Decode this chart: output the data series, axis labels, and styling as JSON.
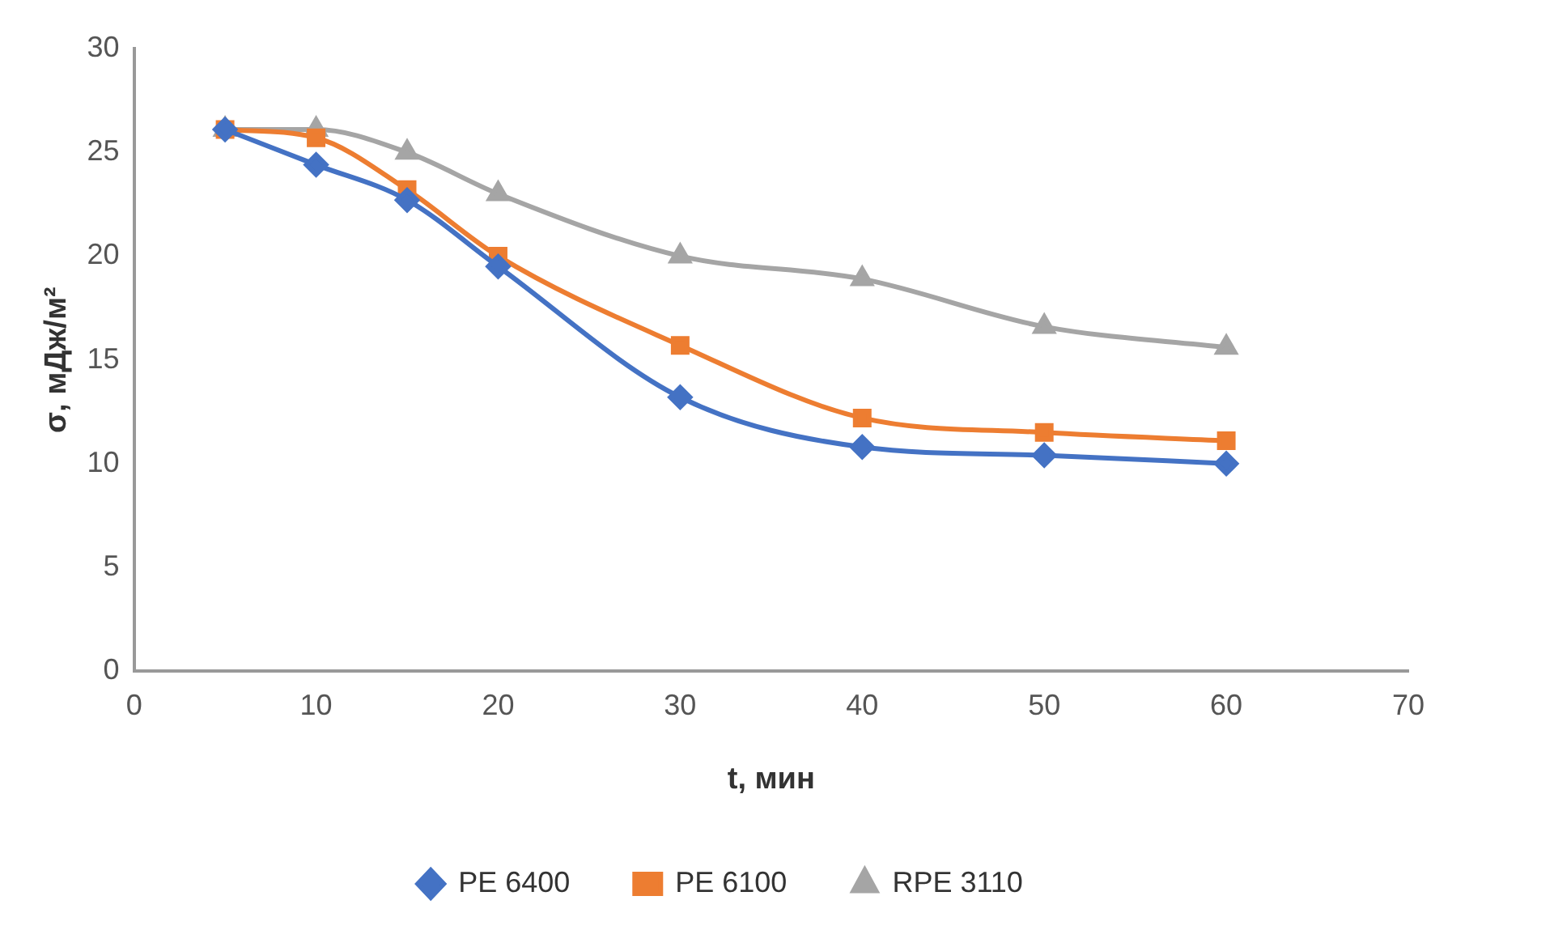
{
  "chart_data": {
    "type": "line",
    "xlabel": "t, мин",
    "ylabel": "σ, мДж/м²",
    "xlim": [
      0,
      70
    ],
    "xticks": [
      0,
      10,
      20,
      30,
      40,
      50,
      60,
      70
    ],
    "ylim": [
      0,
      30
    ],
    "yticks": [
      0,
      5,
      10,
      15,
      20,
      25,
      30
    ],
    "grid": false,
    "legend": "bottom",
    "line_style": "solid",
    "x": [
      5,
      10,
      15,
      20,
      30,
      40,
      50,
      60
    ],
    "series": [
      {
        "name": "PE 6400",
        "color": "#4472c4",
        "marker": "diamond",
        "values": [
          26.1,
          24.4,
          22.7,
          19.5,
          13.2,
          10.8,
          10.4,
          10.0
        ]
      },
      {
        "name": "PE 6100",
        "color": "#ed7d31",
        "marker": "square",
        "values": [
          26.1,
          25.7,
          23.2,
          20.0,
          15.7,
          12.2,
          11.5,
          11.1
        ]
      },
      {
        "name": "RPE 3110",
        "color": "#a5a5a5",
        "marker": "triangle",
        "values": [
          26.1,
          26.1,
          25.0,
          23.0,
          20.0,
          18.9,
          16.6,
          15.6
        ]
      }
    ]
  }
}
